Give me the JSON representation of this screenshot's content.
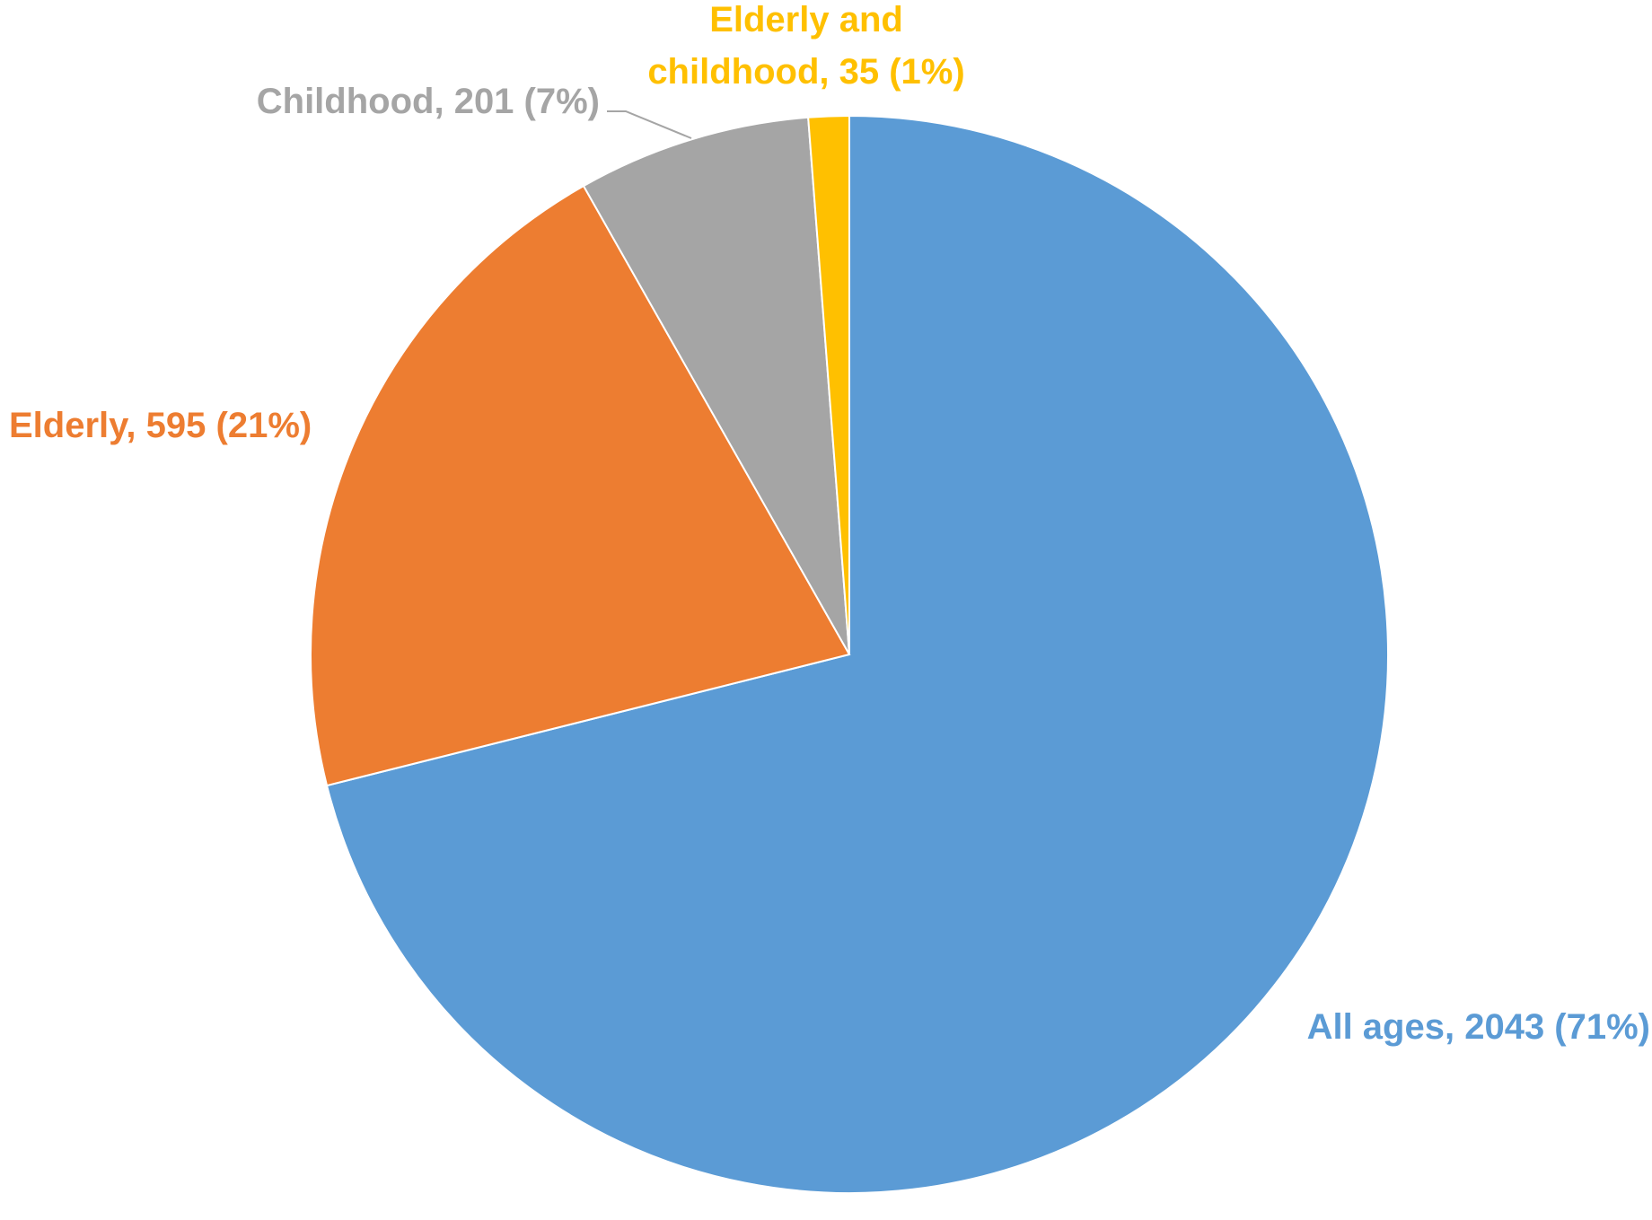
{
  "chart_data": {
    "type": "pie",
    "start_angle_deg": 0,
    "direction": "clockwise",
    "slices": [
      {
        "label": "All ages",
        "value": 2043,
        "percent": "71%",
        "color": "#5B9BD5"
      },
      {
        "label": "Elderly",
        "value": 595,
        "percent": "21%",
        "color": "#ED7D31"
      },
      {
        "label": "Childhood",
        "value": 201,
        "percent": "7%",
        "color": "#A5A5A5"
      },
      {
        "label": "Elderly and childhood",
        "value": 35,
        "percent": "1%",
        "color": "#FFC000"
      }
    ],
    "data_labels": [
      {
        "lines": [
          "All ages, 2043 (71%)"
        ]
      },
      {
        "lines": [
          "Elderly, 595 (21%)"
        ]
      },
      {
        "lines": [
          "Childhood, 201 (7%)"
        ]
      },
      {
        "lines": [
          "Elderly and",
          "childhood, 35 (1%)"
        ]
      }
    ]
  }
}
